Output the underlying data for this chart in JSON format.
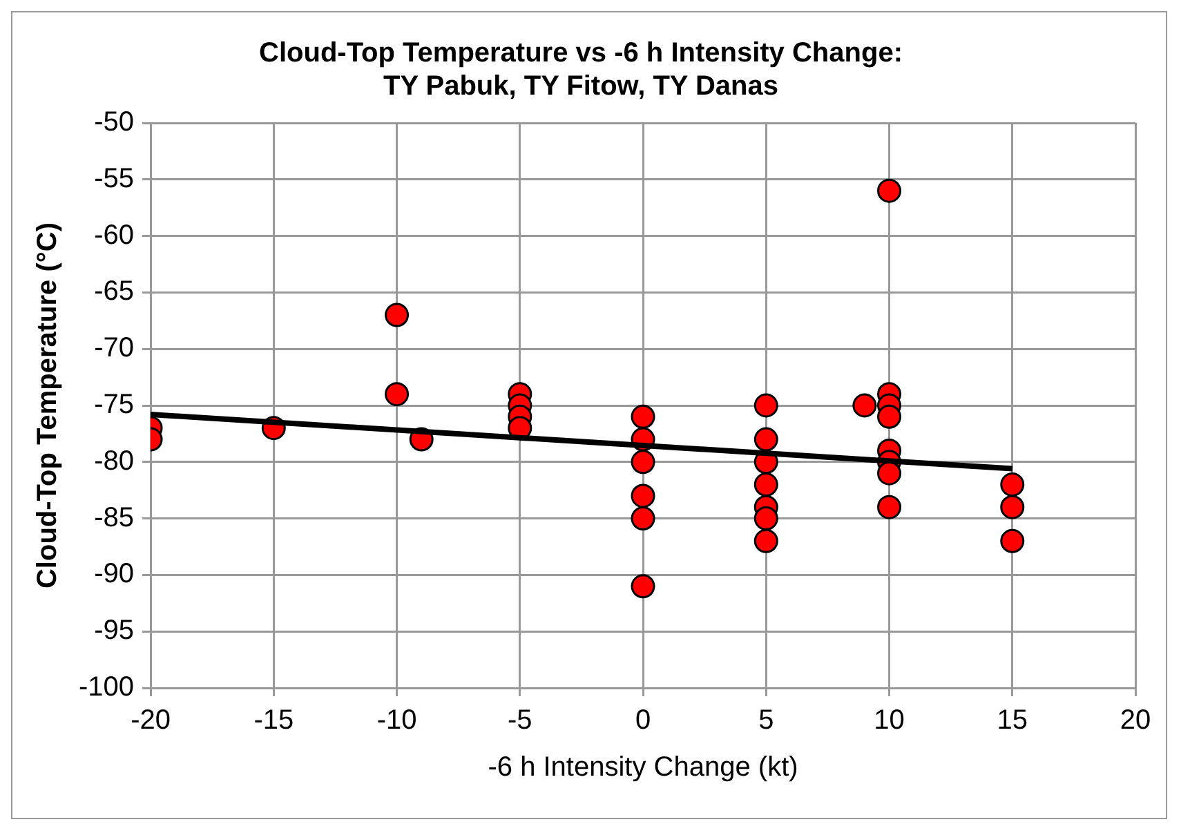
{
  "chart_data": {
    "type": "scatter",
    "title": "Cloud-Top Temperature vs -6 h Intensity Change:\nTY Pabuk, TY Fitow, TY Danas",
    "xlabel": "-6 h Intensity Change (kt)",
    "ylabel": "Cloud-Top Temperature (°C)",
    "xlim": [
      -20,
      20
    ],
    "xticks": [
      -20,
      -15,
      -10,
      -5,
      0,
      5,
      10,
      15,
      20
    ],
    "ylim": [
      -100,
      -50
    ],
    "yticks": [
      -100,
      -95,
      -90,
      -85,
      -80,
      -75,
      -70,
      -65,
      -60,
      -55,
      -50
    ],
    "grid": true,
    "marker": "circle",
    "series": [
      {
        "color": "#ff0000",
        "x": [
          -20,
          -20,
          -15,
          -10,
          -10,
          -9,
          -5,
          -5,
          -5,
          -5,
          0,
          0,
          0,
          0,
          0,
          0,
          5,
          5,
          5,
          5,
          5,
          5,
          5,
          9,
          10,
          10,
          10,
          10,
          10,
          10,
          10,
          10,
          15,
          15,
          15
        ],
        "values": [
          -77,
          -78,
          -77,
          -67,
          -74,
          -78,
          -74,
          -75,
          -76,
          -77,
          -76,
          -78,
          -80,
          -83,
          -85,
          -91,
          -75,
          -78,
          -80,
          -82,
          -84,
          -85,
          -87,
          -75,
          -56,
          -74,
          -75,
          -76,
          -79,
          -80,
          -81,
          -84,
          -82,
          -84,
          -87
        ]
      },
      {
        "type": "line",
        "color": "#000000",
        "x": [
          -20,
          15
        ],
        "values": [
          -75.8,
          -80.6
        ],
        "marker": "none",
        "line_style": "solid"
      }
    ]
  }
}
